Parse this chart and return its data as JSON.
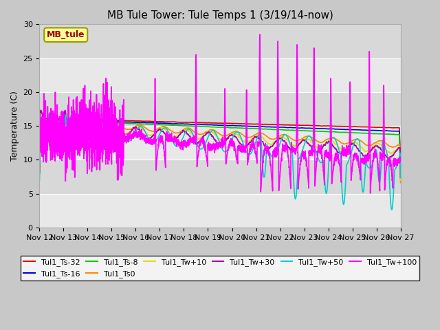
{
  "title": "MB Tule Tower: Tule Temps 1 (3/19/14-now)",
  "ylabel": "Temperature (C)",
  "ylim": [
    0,
    30
  ],
  "yticks": [
    0,
    5,
    10,
    15,
    20,
    25,
    30
  ],
  "xtick_labels": [
    "Nov 12",
    "Nov 13",
    "Nov 14",
    "Nov 15",
    "Nov 16",
    "Nov 17",
    "Nov 18",
    "Nov 19",
    "Nov 20",
    "Nov 21",
    "Nov 22",
    "Nov 23",
    "Nov 24",
    "Nov 25",
    "Nov 26",
    "Nov 27"
  ],
  "legend_label": "MB_tule",
  "series": [
    {
      "label": "Tul1_Ts-32",
      "color": "#dd0000",
      "lw": 1.2
    },
    {
      "label": "Tul1_Ts-16",
      "color": "#0000dd",
      "lw": 1.2
    },
    {
      "label": "Tul1_Ts-8",
      "color": "#00cc00",
      "lw": 1.2
    },
    {
      "label": "Tul1_Ts0",
      "color": "#ff8800",
      "lw": 1.2
    },
    {
      "label": "Tul1_Tw+10",
      "color": "#dddd00",
      "lw": 1.2
    },
    {
      "label": "Tul1_Tw+30",
      "color": "#aa00aa",
      "lw": 1.2
    },
    {
      "label": "Tul1_Tw+50",
      "color": "#00cccc",
      "lw": 1.2
    },
    {
      "label": "Tul1_Tw+100",
      "color": "#ff00ff",
      "lw": 1.2
    }
  ],
  "title_fontsize": 11,
  "label_fontsize": 9,
  "tick_fontsize": 8,
  "fig_facecolor": "#c8c8c8",
  "ax_facecolor": "#e8e8e8",
  "band_colors": [
    "#e8e8e8",
    "#d8d8d8"
  ]
}
